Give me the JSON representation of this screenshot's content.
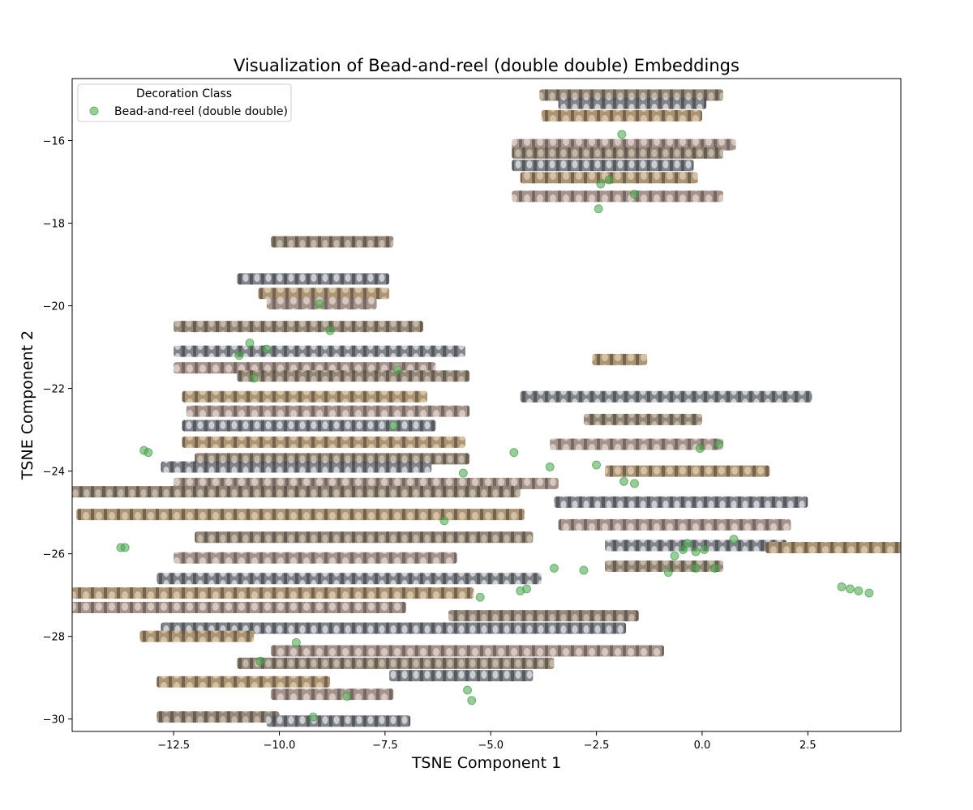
{
  "chart_data": {
    "type": "scatter",
    "title": "Visualization of Bead-and-reel (double double) Embeddings",
    "xlabel": "TSNE Component 1",
    "ylabel": "TSNE Component 2",
    "xlim": [
      -14.9,
      4.7
    ],
    "ylim": [
      -30.3,
      -14.5
    ],
    "xticks": [
      -12.5,
      -10.0,
      -7.5,
      -5.0,
      -2.5,
      0.0,
      2.5
    ],
    "xtick_labels": [
      "−12.5",
      "−10.0",
      "−7.5",
      "−5.0",
      "−2.5",
      "0.0",
      "2.5"
    ],
    "yticks": [
      -16,
      -18,
      -20,
      -22,
      -24,
      -26,
      -28,
      -30
    ],
    "ytick_labels": [
      "−16",
      "−18",
      "−20",
      "−22",
      "−24",
      "−26",
      "−28",
      "−30"
    ],
    "grid": false,
    "legend": {
      "title": "Decoration Class",
      "position": "top-left",
      "entries": [
        "Bead-and-reel (double double)"
      ]
    },
    "point_color": "#4caf50",
    "series": [
      {
        "name": "Bead-and-reel (double double)",
        "points": [
          [
            -1.9,
            -15.85
          ],
          [
            -2.4,
            -17.05
          ],
          [
            -2.2,
            -16.95
          ],
          [
            -1.6,
            -17.3
          ],
          [
            -2.45,
            -17.65
          ],
          [
            -9.05,
            -19.95
          ],
          [
            -8.8,
            -20.6
          ],
          [
            -10.7,
            -20.9
          ],
          [
            -10.95,
            -21.2
          ],
          [
            -10.3,
            -21.05
          ],
          [
            -7.2,
            -21.55
          ],
          [
            -10.6,
            -21.75
          ],
          [
            -13.2,
            -23.5
          ],
          [
            -13.1,
            -23.55
          ],
          [
            -4.45,
            -23.55
          ],
          [
            -5.65,
            -24.05
          ],
          [
            -2.5,
            -23.85
          ],
          [
            -3.6,
            -23.9
          ],
          [
            -1.85,
            -24.25
          ],
          [
            -1.6,
            -24.3
          ],
          [
            -0.05,
            -23.45
          ],
          [
            0.4,
            -23.35
          ],
          [
            -13.75,
            -25.85
          ],
          [
            -13.65,
            -25.85
          ],
          [
            -0.8,
            -26.45
          ],
          [
            -0.65,
            -26.05
          ],
          [
            -0.45,
            -25.9
          ],
          [
            -0.35,
            -25.75
          ],
          [
            -0.15,
            -25.95
          ],
          [
            0.05,
            -25.9
          ],
          [
            0.75,
            -25.65
          ],
          [
            -3.5,
            -26.35
          ],
          [
            -2.8,
            -26.4
          ],
          [
            -4.3,
            -26.9
          ],
          [
            -4.15,
            -26.85
          ],
          [
            -5.25,
            -27.05
          ],
          [
            -0.15,
            -26.35
          ],
          [
            0.3,
            -26.35
          ],
          [
            3.3,
            -26.8
          ],
          [
            3.5,
            -26.85
          ],
          [
            3.7,
            -26.9
          ],
          [
            3.95,
            -26.95
          ],
          [
            -10.45,
            -28.6
          ],
          [
            -8.4,
            -29.45
          ],
          [
            -5.55,
            -29.3
          ],
          [
            -5.45,
            -29.55
          ],
          [
            -9.2,
            -29.95
          ],
          [
            -9.6,
            -28.15
          ],
          [
            -7.3,
            -22.9
          ],
          [
            -6.1,
            -25.2
          ]
        ]
      }
    ],
    "thumbnail_clusters": [
      {
        "y": -14.9,
        "x0": -3.85,
        "x1": 0.5
      },
      {
        "y": -15.1,
        "x0": -3.4,
        "x1": 0.1
      },
      {
        "y": -15.4,
        "x0": -3.8,
        "x1": 0.0
      },
      {
        "y": -16.1,
        "x0": -4.5,
        "x1": 0.8
      },
      {
        "y": -16.3,
        "x0": -4.5,
        "x1": 0.5
      },
      {
        "y": -16.6,
        "x0": -4.5,
        "x1": -0.2
      },
      {
        "y": -16.9,
        "x0": -4.3,
        "x1": -0.1
      },
      {
        "y": -17.35,
        "x0": -4.5,
        "x1": 0.5
      },
      {
        "y": -18.45,
        "x0": -10.2,
        "x1": -7.3
      },
      {
        "y": -19.35,
        "x0": -11.0,
        "x1": -7.4
      },
      {
        "y": -19.7,
        "x0": -10.5,
        "x1": -7.4
      },
      {
        "y": -19.95,
        "x0": -10.3,
        "x1": -7.7
      },
      {
        "y": -20.5,
        "x0": -12.5,
        "x1": -6.6
      },
      {
        "y": -21.1,
        "x0": -12.5,
        "x1": -5.6
      },
      {
        "y": -21.3,
        "x0": -2.6,
        "x1": -1.3
      },
      {
        "y": -21.5,
        "x0": -12.5,
        "x1": -6.3
      },
      {
        "y": -21.7,
        "x0": -11.0,
        "x1": -5.5
      },
      {
        "y": -22.2,
        "x0": -4.3,
        "x1": 2.6
      },
      {
        "y": -22.2,
        "x0": -12.3,
        "x1": -6.5
      },
      {
        "y": -22.55,
        "x0": -12.2,
        "x1": -5.5
      },
      {
        "y": -22.75,
        "x0": -2.8,
        "x1": 0.0
      },
      {
        "y": -22.9,
        "x0": -12.3,
        "x1": -6.3
      },
      {
        "y": -23.3,
        "x0": -12.3,
        "x1": -5.6
      },
      {
        "y": -23.35,
        "x0": -3.6,
        "x1": 0.5
      },
      {
        "y": -23.7,
        "x0": -12.0,
        "x1": -5.5
      },
      {
        "y": -23.9,
        "x0": -12.8,
        "x1": -6.4
      },
      {
        "y": -24.0,
        "x0": -2.3,
        "x1": 1.6
      },
      {
        "y": -24.3,
        "x0": -12.5,
        "x1": -3.4
      },
      {
        "y": -24.5,
        "x0": -15.0,
        "x1": -4.3
      },
      {
        "y": -24.75,
        "x0": -3.5,
        "x1": 2.5
      },
      {
        "y": -25.05,
        "x0": -14.8,
        "x1": -4.2
      },
      {
        "y": -25.3,
        "x0": -3.4,
        "x1": 2.1
      },
      {
        "y": -25.6,
        "x0": -12.0,
        "x1": -4.0
      },
      {
        "y": -25.8,
        "x0": -2.3,
        "x1": 2.0
      },
      {
        "y": -25.85,
        "x0": 1.5,
        "x1": 5.9
      },
      {
        "y": -26.1,
        "x0": -12.5,
        "x1": -5.8
      },
      {
        "y": -26.3,
        "x0": -2.3,
        "x1": 0.5
      },
      {
        "y": -26.6,
        "x0": -12.9,
        "x1": -3.8
      },
      {
        "y": -26.95,
        "x0": -15.0,
        "x1": -5.4
      },
      {
        "y": -27.3,
        "x0": -15.1,
        "x1": -7.0
      },
      {
        "y": -27.5,
        "x0": -6.0,
        "x1": -1.5
      },
      {
        "y": -27.8,
        "x0": -12.8,
        "x1": -1.8
      },
      {
        "y": -28.0,
        "x0": -13.3,
        "x1": -10.6
      },
      {
        "y": -28.35,
        "x0": -10.2,
        "x1": -0.9
      },
      {
        "y": -28.65,
        "x0": -11.0,
        "x1": -3.5
      },
      {
        "y": -28.95,
        "x0": -7.4,
        "x1": -4.0
      },
      {
        "y": -29.1,
        "x0": -12.9,
        "x1": -8.8
      },
      {
        "y": -29.4,
        "x0": -10.2,
        "x1": -7.3
      },
      {
        "y": -29.95,
        "x0": -12.9,
        "x1": -10.0
      },
      {
        "y": -30.05,
        "x0": -10.3,
        "x1": -6.9
      }
    ]
  }
}
